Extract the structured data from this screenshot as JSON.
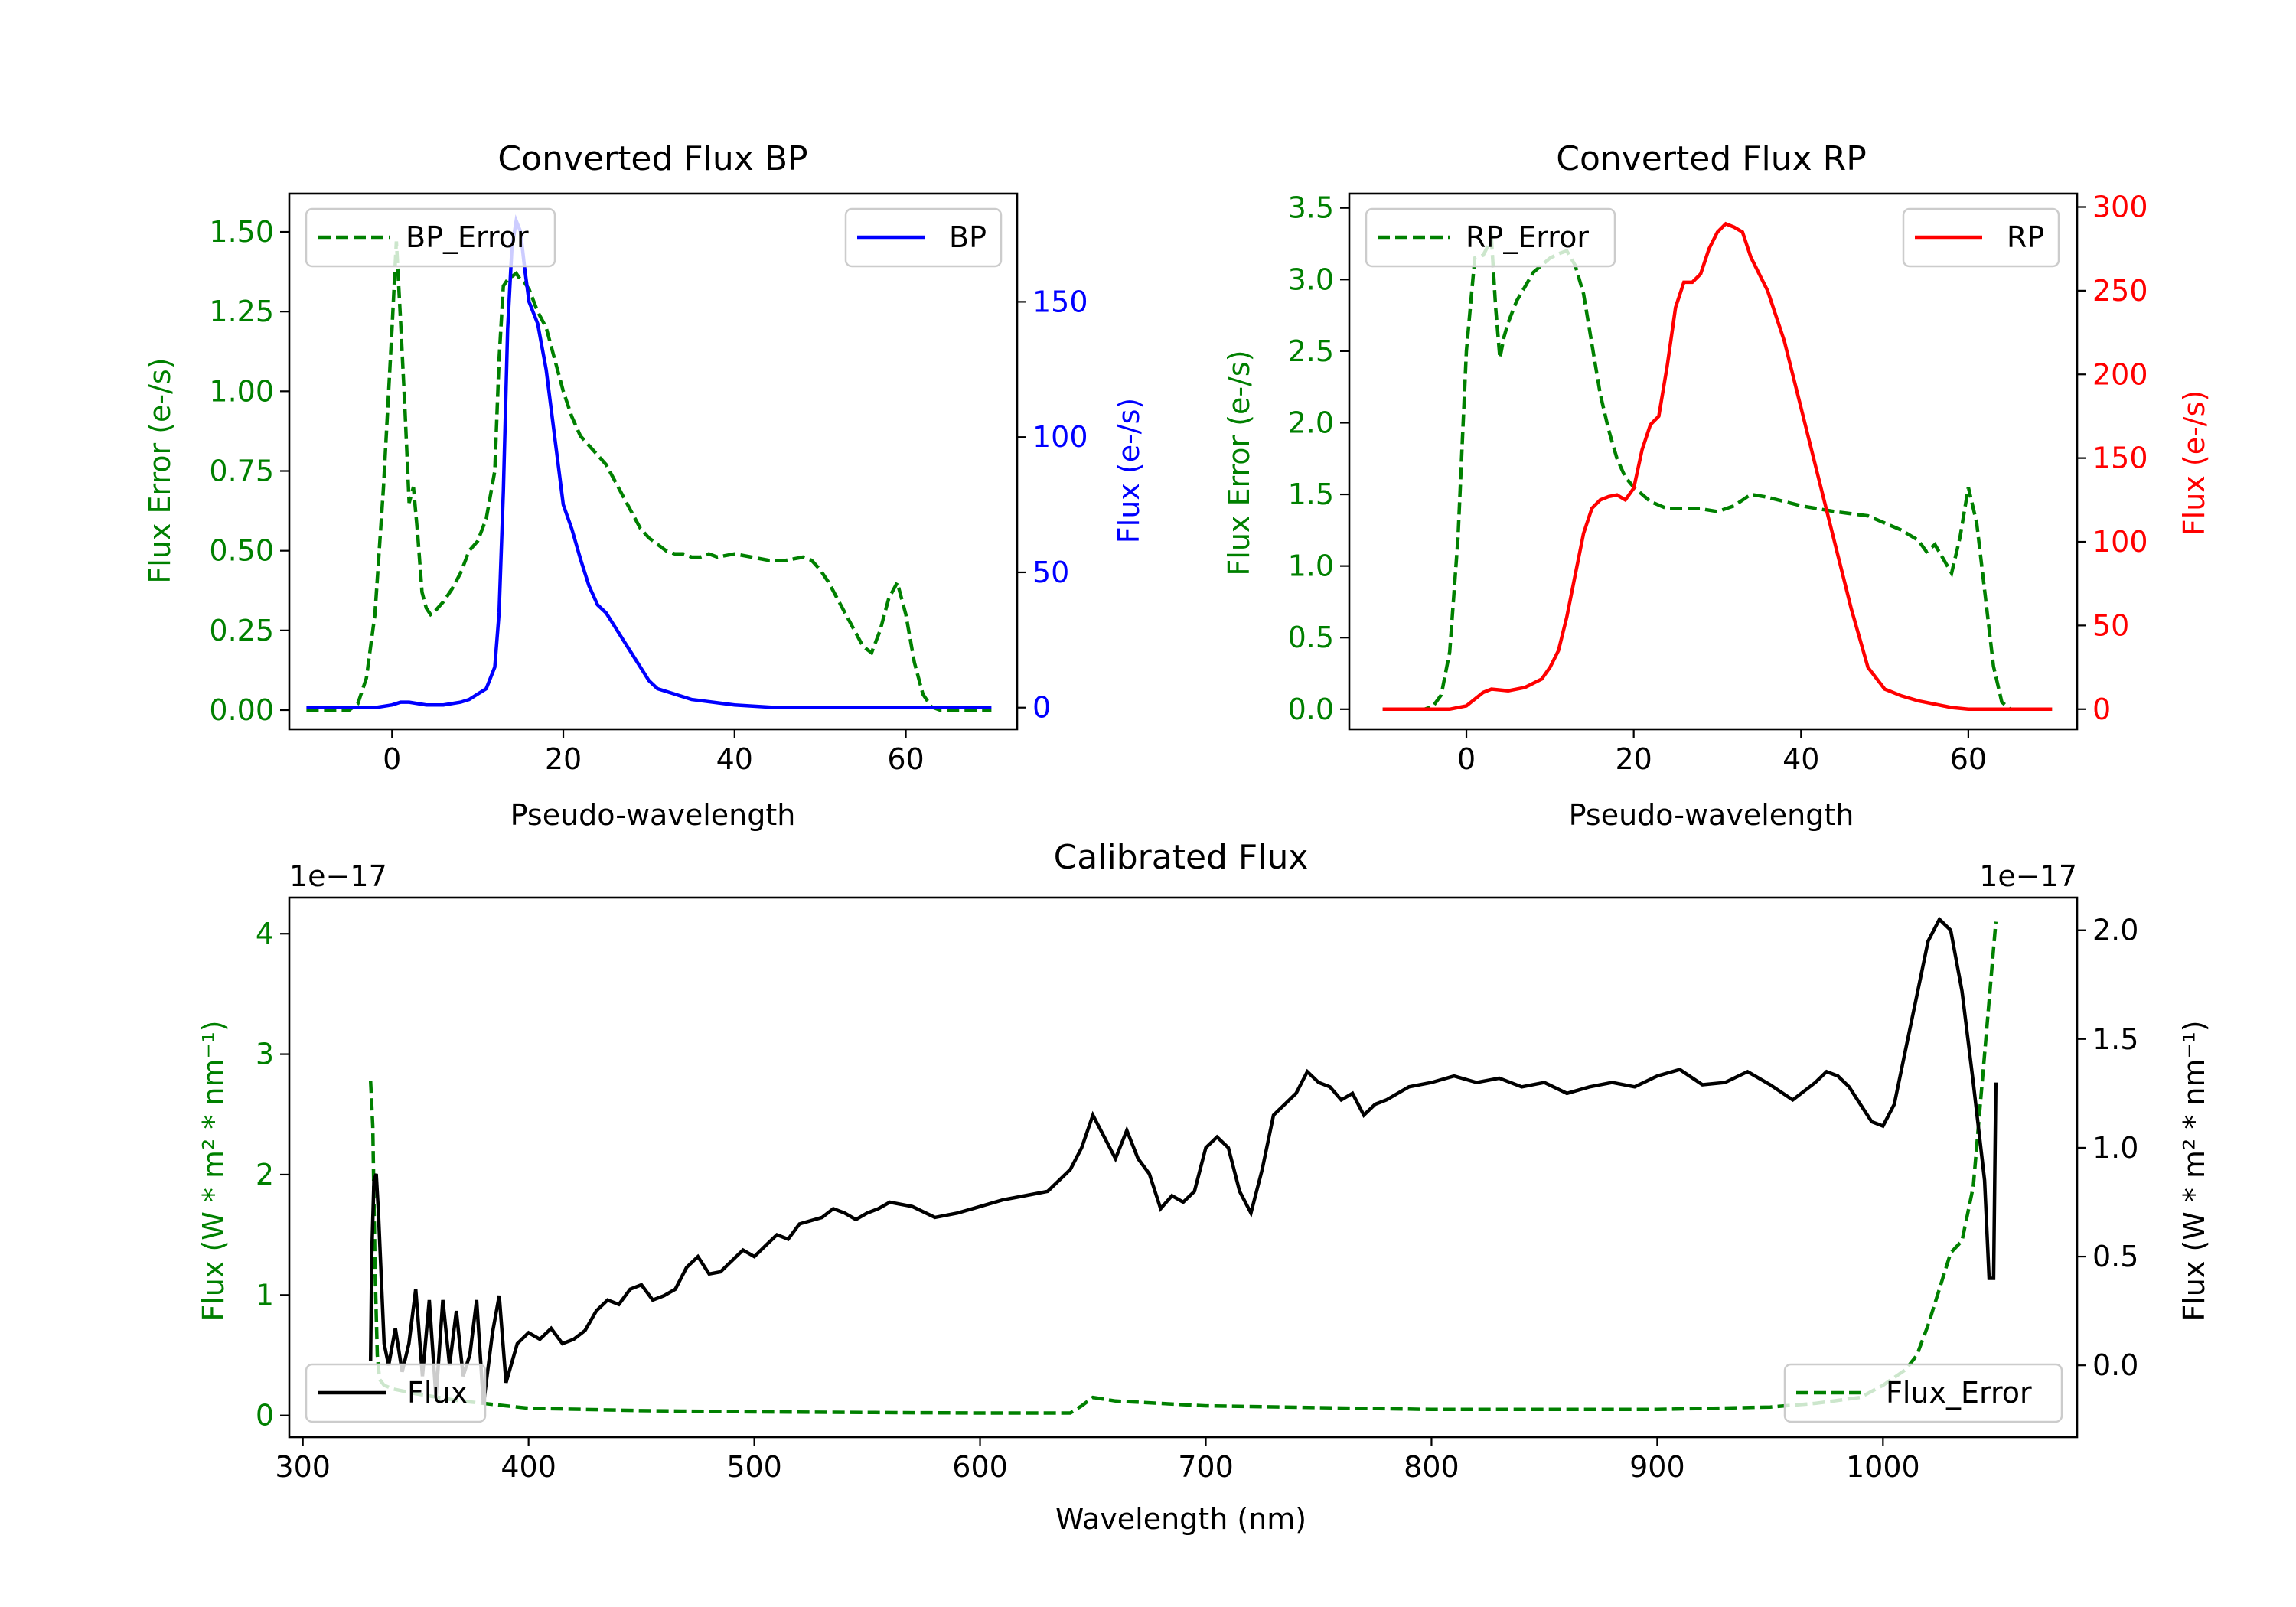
{
  "colors": {
    "error": "#008000",
    "bp": "#0000ff",
    "rp": "#ff0000",
    "flux": "#000000",
    "axis": "#000000"
  },
  "chart_data": [
    {
      "id": "bp",
      "type": "line",
      "title": "Converted Flux BP",
      "xlabel": "Pseudo-wavelength",
      "ylabel_left": "Flux Error (e-/s)",
      "ylabel_right": "Flux (e-/s)",
      "xlim": [
        -12,
        73
      ],
      "ylim_left": [
        -0.06,
        1.62
      ],
      "ylim_right": [
        -8,
        190
      ],
      "xticks": [
        0,
        20,
        40,
        60
      ],
      "xtick_labels": [
        "0",
        "20",
        "40",
        "60"
      ],
      "yticks_left": [
        0,
        0.25,
        0.5,
        0.75,
        1.0,
        1.25,
        1.5
      ],
      "ytick_labels_left": [
        "0.00",
        "0.25",
        "0.50",
        "0.75",
        "1.00",
        "1.25",
        "1.50"
      ],
      "yticks_right": [
        0,
        50,
        100,
        150
      ],
      "ytick_labels_right": [
        "0",
        "50",
        "100",
        "150"
      ],
      "legend_left": "BP_Error",
      "legend_right": "BP",
      "series": [
        {
          "name": "BP_Error",
          "axis": "left",
          "style": "dashed",
          "color": "#008000",
          "x": [
            -10,
            -5,
            -4,
            -3,
            -2,
            -1,
            0,
            0.5,
            1,
            1.5,
            2,
            2.5,
            3,
            3.5,
            4,
            4.5,
            5,
            6,
            7,
            8,
            9,
            10,
            11,
            12,
            12.5,
            13,
            13.5,
            14,
            14.5,
            15,
            15.5,
            16,
            17,
            18,
            19,
            20,
            21,
            22,
            23,
            24,
            25,
            26,
            27,
            28,
            29,
            30,
            31,
            32,
            33,
            34,
            35,
            36,
            37,
            38,
            40,
            42,
            44,
            46,
            48,
            49,
            50,
            51,
            52,
            53,
            54,
            55,
            56,
            57,
            58,
            59,
            60,
            61,
            62,
            63,
            64,
            65,
            70
          ],
          "y": [
            0,
            0,
            0.02,
            0.1,
            0.3,
            0.7,
            1.2,
            1.47,
            1.22,
            0.95,
            0.65,
            0.7,
            0.55,
            0.37,
            0.32,
            0.3,
            0.31,
            0.34,
            0.38,
            0.43,
            0.5,
            0.53,
            0.6,
            0.75,
            1.1,
            1.33,
            1.35,
            1.36,
            1.37,
            1.35,
            1.34,
            1.32,
            1.25,
            1.2,
            1.1,
            1.0,
            0.92,
            0.86,
            0.83,
            0.8,
            0.77,
            0.72,
            0.67,
            0.62,
            0.57,
            0.54,
            0.52,
            0.5,
            0.49,
            0.49,
            0.48,
            0.48,
            0.49,
            0.48,
            0.49,
            0.48,
            0.47,
            0.47,
            0.48,
            0.47,
            0.44,
            0.4,
            0.35,
            0.3,
            0.25,
            0.2,
            0.18,
            0.25,
            0.35,
            0.4,
            0.3,
            0.15,
            0.05,
            0.01,
            0,
            0,
            0
          ]
        },
        {
          "name": "BP",
          "axis": "right",
          "style": "solid",
          "color": "#0000ff",
          "x": [
            -10,
            -5,
            -2,
            0,
            1,
            2,
            4,
            6,
            8,
            9,
            10,
            11,
            12,
            12.5,
            13,
            13.5,
            14,
            14.5,
            15,
            15.5,
            16,
            17,
            18,
            19,
            20,
            21,
            22,
            23,
            24,
            25,
            26,
            27,
            28,
            29,
            30,
            31,
            32,
            33,
            35,
            40,
            45,
            50,
            55,
            60,
            65,
            70
          ],
          "y": [
            0,
            0,
            0,
            1,
            2,
            2,
            1,
            1,
            2,
            3,
            5,
            7,
            15,
            35,
            80,
            140,
            170,
            180,
            176,
            162,
            150,
            142,
            125,
            100,
            75,
            66,
            55,
            45,
            38,
            35,
            30,
            25,
            20,
            15,
            10,
            7,
            6,
            5,
            3,
            1,
            0,
            0,
            0,
            0,
            0,
            0
          ]
        }
      ]
    },
    {
      "id": "rp",
      "type": "line",
      "title": "Converted Flux RP",
      "xlabel": "Pseudo-wavelength",
      "ylabel_left": "Flux Error (e-/s)",
      "ylabel_right": "Flux (e-/s)",
      "xlim": [
        -14,
        73
      ],
      "ylim_left": [
        -0.14,
        3.6
      ],
      "ylim_right": [
        -12,
        308
      ],
      "xticks": [
        0,
        20,
        40,
        60
      ],
      "xtick_labels": [
        "0",
        "20",
        "40",
        "60"
      ],
      "yticks_left": [
        0,
        0.5,
        1.0,
        1.5,
        2.0,
        2.5,
        3.0,
        3.5
      ],
      "ytick_labels_left": [
        "0.0",
        "0.5",
        "1.0",
        "1.5",
        "2.0",
        "2.5",
        "3.0",
        "3.5"
      ],
      "yticks_right": [
        0,
        50,
        100,
        150,
        200,
        250,
        300
      ],
      "ytick_labels_right": [
        "0",
        "50",
        "100",
        "150",
        "200",
        "250",
        "300"
      ],
      "legend_left": "RP_Error",
      "legend_right": "RP",
      "series": [
        {
          "name": "RP_Error",
          "axis": "left",
          "style": "dashed",
          "color": "#008000",
          "x": [
            -10,
            -5,
            -4,
            -3,
            -2,
            -1,
            0,
            1,
            2,
            3,
            3.5,
            4,
            4.5,
            5,
            6,
            7,
            8,
            9,
            10,
            11,
            12,
            13,
            14,
            15,
            16,
            17,
            18,
            19,
            20,
            22,
            24,
            26,
            28,
            30,
            32,
            34,
            36,
            38,
            40,
            44,
            48,
            52,
            54,
            55,
            56,
            57,
            58,
            59,
            60,
            61,
            62,
            63,
            64,
            65,
            70
          ],
          "y": [
            0,
            0,
            0.02,
            0.1,
            0.4,
            1.2,
            2.5,
            3.15,
            3.17,
            3.28,
            2.8,
            2.45,
            2.6,
            2.7,
            2.85,
            2.95,
            3.05,
            3.1,
            3.15,
            3.18,
            3.2,
            3.1,
            2.9,
            2.55,
            2.2,
            1.95,
            1.75,
            1.62,
            1.55,
            1.45,
            1.4,
            1.4,
            1.4,
            1.38,
            1.42,
            1.5,
            1.48,
            1.45,
            1.42,
            1.38,
            1.35,
            1.25,
            1.18,
            1.1,
            1.15,
            1.05,
            0.95,
            1.2,
            1.55,
            1.3,
            0.8,
            0.3,
            0.05,
            0,
            0
          ]
        },
        {
          "name": "RP",
          "axis": "right",
          "style": "solid",
          "color": "#ff0000",
          "x": [
            -10,
            -2,
            0,
            1,
            2,
            3,
            5,
            7,
            9,
            10,
            11,
            12,
            13,
            14,
            15,
            16,
            17,
            18,
            19,
            20,
            21,
            22,
            23,
            24,
            25,
            26,
            27,
            28,
            29,
            30,
            31,
            32,
            33,
            34,
            35,
            36,
            37,
            38,
            40,
            42,
            44,
            46,
            48,
            50,
            52,
            54,
            56,
            58,
            60,
            62,
            65,
            70
          ],
          "y": [
            0,
            0,
            2,
            6,
            10,
            12,
            11,
            13,
            18,
            25,
            35,
            55,
            80,
            105,
            120,
            125,
            127,
            128,
            125,
            132,
            155,
            170,
            175,
            205,
            240,
            255,
            255,
            260,
            275,
            285,
            290,
            288,
            285,
            270,
            260,
            250,
            235,
            220,
            180,
            140,
            100,
            60,
            25,
            12,
            8,
            5,
            3,
            1,
            0,
            0,
            0,
            0
          ]
        }
      ]
    },
    {
      "id": "calibrated",
      "type": "line",
      "title": "Calibrated Flux",
      "xlabel": "Wavelength (nm)",
      "ylabel_left": "Flux (W * m² * nm⁻¹)",
      "ylabel_right": "Flux (W * m² * nm⁻¹)",
      "offset_left": "1e−17",
      "offset_right": "1e−17",
      "xlim": [
        294,
        1086
      ],
      "ylim_left": [
        -0.18,
        4.3
      ],
      "ylim_right": [
        -0.33,
        2.15
      ],
      "xticks": [
        300,
        400,
        500,
        600,
        700,
        800,
        900,
        1000
      ],
      "xtick_labels": [
        "300",
        "400",
        "500",
        "600",
        "700",
        "800",
        "900",
        "1000"
      ],
      "yticks_left": [
        0,
        1,
        2,
        3,
        4
      ],
      "ytick_labels_left": [
        "0",
        "1",
        "2",
        "3",
        "4"
      ],
      "yticks_right": [
        0.0,
        0.5,
        1.0,
        1.5,
        2.0
      ],
      "ytick_labels_right": [
        "0.0",
        "0.5",
        "1.0",
        "1.5",
        "2.0"
      ],
      "legend_left": "Flux",
      "legend_right": "Flux_Error",
      "series": [
        {
          "name": "Flux_Error",
          "axis": "left",
          "style": "dashed",
          "color": "#008000",
          "x": [
            330,
            331,
            332,
            333,
            334,
            336,
            340,
            345,
            350,
            360,
            370,
            380,
            390,
            400,
            450,
            500,
            600,
            640,
            645,
            650,
            660,
            700,
            800,
            900,
            950,
            970,
            990,
            1000,
            1010,
            1015,
            1020,
            1025,
            1030,
            1035,
            1040,
            1045,
            1050
          ],
          "y": [
            2.78,
            2.4,
            1.2,
            0.5,
            0.3,
            0.25,
            0.22,
            0.2,
            0.18,
            0.15,
            0.12,
            0.1,
            0.08,
            0.06,
            0.04,
            0.03,
            0.02,
            0.02,
            0.08,
            0.15,
            0.12,
            0.08,
            0.05,
            0.05,
            0.07,
            0.1,
            0.15,
            0.25,
            0.38,
            0.5,
            0.75,
            1.05,
            1.35,
            1.45,
            1.9,
            3.0,
            4.1
          ]
        },
        {
          "name": "Flux",
          "axis": "right",
          "style": "solid",
          "color": "#000000",
          "x": [
            330,
            330.5,
            331.5,
            332.5,
            333.5,
            336,
            338,
            341,
            344,
            347,
            350,
            353,
            356,
            359,
            362,
            365,
            368,
            371,
            374,
            377,
            380,
            384,
            387,
            390,
            395,
            400,
            405,
            410,
            415,
            420,
            425,
            430,
            435,
            440,
            445,
            450,
            455,
            460,
            465,
            470,
            475,
            480,
            485,
            490,
            495,
            500,
            505,
            510,
            515,
            520,
            530,
            535,
            540,
            545,
            550,
            555,
            560,
            570,
            580,
            590,
            600,
            610,
            620,
            630,
            640,
            645,
            650,
            655,
            660,
            665,
            670,
            675,
            680,
            685,
            690,
            695,
            700,
            705,
            710,
            715,
            720,
            725,
            730,
            740,
            745,
            750,
            755,
            760,
            765,
            770,
            775,
            780,
            790,
            800,
            810,
            820,
            830,
            840,
            850,
            860,
            870,
            880,
            890,
            900,
            910,
            920,
            930,
            940,
            950,
            960,
            970,
            975,
            980,
            985,
            990,
            995,
            1000,
            1005,
            1010,
            1015,
            1020,
            1025,
            1030,
            1035,
            1040,
            1045,
            1047,
            1049,
            1050
          ],
          "y": [
            0.02,
            0.5,
            0.85,
            0.88,
            0.7,
            0.1,
            0.0,
            0.17,
            -0.03,
            0.1,
            0.35,
            -0.05,
            0.3,
            -0.15,
            0.3,
            0.0,
            0.25,
            -0.05,
            0.05,
            0.3,
            -0.18,
            0.15,
            0.32,
            -0.08,
            0.1,
            0.15,
            0.12,
            0.17,
            0.1,
            0.12,
            0.16,
            0.25,
            0.3,
            0.28,
            0.35,
            0.37,
            0.3,
            0.32,
            0.35,
            0.45,
            0.5,
            0.42,
            0.43,
            0.48,
            0.53,
            0.5,
            0.55,
            0.6,
            0.58,
            0.65,
            0.68,
            0.72,
            0.7,
            0.67,
            0.7,
            0.72,
            0.75,
            0.73,
            0.68,
            0.7,
            0.73,
            0.76,
            0.78,
            0.8,
            0.9,
            1.0,
            1.15,
            1.05,
            0.95,
            1.08,
            0.95,
            0.88,
            0.72,
            0.78,
            0.75,
            0.8,
            1.0,
            1.05,
            1.0,
            0.8,
            0.7,
            0.9,
            1.15,
            1.25,
            1.35,
            1.3,
            1.28,
            1.22,
            1.25,
            1.15,
            1.2,
            1.22,
            1.28,
            1.3,
            1.33,
            1.3,
            1.32,
            1.28,
            1.3,
            1.25,
            1.28,
            1.3,
            1.28,
            1.33,
            1.36,
            1.29,
            1.3,
            1.35,
            1.29,
            1.22,
            1.3,
            1.35,
            1.33,
            1.28,
            1.2,
            1.12,
            1.1,
            1.2,
            1.45,
            1.7,
            1.95,
            2.05,
            2.0,
            1.72,
            1.3,
            0.85,
            0.4,
            0.4,
            1.3
          ]
        }
      ]
    }
  ]
}
